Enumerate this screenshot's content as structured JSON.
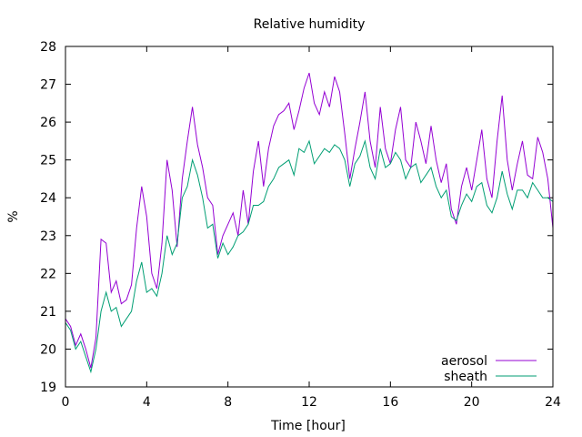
{
  "chart_data": {
    "type": "line",
    "title": "Relative humidity",
    "xlabel": "Time [hour]",
    "ylabel": "%",
    "xlim": [
      0,
      24
    ],
    "ylim": [
      19,
      28
    ],
    "xticks": [
      0,
      4,
      8,
      12,
      16,
      20,
      24
    ],
    "yticks": [
      19,
      20,
      21,
      22,
      23,
      24,
      25,
      26,
      27,
      28
    ],
    "grid": false,
    "legend_position": "bottom-right",
    "series": [
      {
        "name": "aerosol",
        "color": "#9400d3",
        "x": [
          0,
          0.25,
          0.5,
          0.75,
          1,
          1.25,
          1.5,
          1.75,
          2,
          2.25,
          2.5,
          2.75,
          3,
          3.25,
          3.5,
          3.75,
          4,
          4.25,
          4.5,
          4.75,
          5,
          5.25,
          5.5,
          5.75,
          6,
          6.25,
          6.5,
          6.75,
          7,
          7.25,
          7.5,
          7.75,
          8,
          8.25,
          8.5,
          8.75,
          9,
          9.25,
          9.5,
          9.75,
          10,
          10.25,
          10.5,
          10.75,
          11,
          11.25,
          11.5,
          11.75,
          12,
          12.25,
          12.5,
          12.75,
          13,
          13.25,
          13.5,
          13.75,
          14,
          14.25,
          14.5,
          14.75,
          15,
          15.25,
          15.5,
          15.75,
          16,
          16.25,
          16.5,
          16.75,
          17,
          17.25,
          17.5,
          17.75,
          18,
          18.25,
          18.5,
          18.75,
          19,
          19.25,
          19.5,
          19.75,
          20,
          20.25,
          20.5,
          20.75,
          21,
          21.25,
          21.5,
          21.75,
          22,
          22.25,
          22.5,
          22.75,
          23,
          23.25,
          23.5,
          23.75,
          24
        ],
        "values": [
          20.8,
          20.6,
          20.1,
          20.4,
          20.0,
          19.5,
          20.3,
          22.9,
          22.8,
          21.5,
          21.8,
          21.2,
          21.3,
          21.7,
          23.2,
          24.3,
          23.5,
          22.0,
          21.6,
          22.8,
          25.0,
          24.2,
          22.7,
          24.5,
          25.5,
          26.4,
          25.4,
          24.8,
          24.0,
          23.8,
          22.5,
          23.0,
          23.3,
          23.6,
          23.0,
          24.2,
          23.3,
          24.7,
          25.5,
          24.3,
          25.3,
          25.9,
          26.2,
          26.3,
          26.5,
          25.8,
          26.3,
          26.9,
          27.3,
          26.5,
          26.2,
          26.8,
          26.4,
          27.2,
          26.8,
          25.7,
          24.5,
          25.3,
          26.0,
          26.8,
          25.5,
          24.8,
          26.4,
          25.3,
          24.9,
          25.8,
          26.4,
          25.0,
          24.8,
          26.0,
          25.5,
          24.9,
          25.9,
          25.0,
          24.4,
          24.9,
          23.7,
          23.3,
          24.3,
          24.8,
          24.2,
          25.0,
          25.8,
          24.5,
          24.0,
          25.5,
          26.7,
          25.0,
          24.2,
          24.9,
          25.5,
          24.6,
          24.5,
          25.6,
          25.2,
          24.5,
          23.2
        ]
      },
      {
        "name": "sheath",
        "color": "#009e73",
        "x": [
          0,
          0.25,
          0.5,
          0.75,
          1,
          1.25,
          1.5,
          1.75,
          2,
          2.25,
          2.5,
          2.75,
          3,
          3.25,
          3.5,
          3.75,
          4,
          4.25,
          4.5,
          4.75,
          5,
          5.25,
          5.5,
          5.75,
          6,
          6.25,
          6.5,
          6.75,
          7,
          7.25,
          7.5,
          7.75,
          8,
          8.25,
          8.5,
          8.75,
          9,
          9.25,
          9.5,
          9.75,
          10,
          10.25,
          10.5,
          10.75,
          11,
          11.25,
          11.5,
          11.75,
          12,
          12.25,
          12.5,
          12.75,
          13,
          13.25,
          13.5,
          13.75,
          14,
          14.25,
          14.5,
          14.75,
          15,
          15.25,
          15.5,
          15.75,
          16,
          16.25,
          16.5,
          16.75,
          17,
          17.25,
          17.5,
          17.75,
          18,
          18.25,
          18.5,
          18.75,
          19,
          19.25,
          19.5,
          19.75,
          20,
          20.25,
          20.5,
          20.75,
          21,
          21.25,
          21.5,
          21.75,
          22,
          22.25,
          22.5,
          22.75,
          23,
          23.25,
          23.5,
          23.75,
          24
        ],
        "values": [
          20.7,
          20.5,
          20.0,
          20.2,
          19.8,
          19.4,
          20.0,
          21.0,
          21.5,
          21.0,
          21.1,
          20.6,
          20.8,
          21.0,
          21.8,
          22.3,
          21.5,
          21.6,
          21.4,
          22.0,
          23.0,
          22.5,
          22.8,
          24.0,
          24.3,
          25.0,
          24.6,
          24.0,
          23.2,
          23.3,
          22.4,
          22.8,
          22.5,
          22.7,
          23.0,
          23.1,
          23.3,
          23.8,
          23.8,
          23.9,
          24.3,
          24.5,
          24.8,
          24.9,
          25.0,
          24.6,
          25.3,
          25.2,
          25.5,
          24.9,
          25.1,
          25.3,
          25.2,
          25.4,
          25.3,
          25.0,
          24.3,
          24.9,
          25.1,
          25.5,
          24.8,
          24.5,
          25.3,
          24.8,
          24.9,
          25.2,
          25.0,
          24.5,
          24.8,
          24.9,
          24.4,
          24.6,
          24.8,
          24.3,
          24.0,
          24.2,
          23.5,
          23.4,
          23.8,
          24.1,
          23.9,
          24.3,
          24.4,
          23.8,
          23.6,
          24.0,
          24.7,
          24.1,
          23.7,
          24.2,
          24.2,
          24.0,
          24.4,
          24.2,
          24.0,
          24.0,
          23.9
        ]
      }
    ]
  }
}
